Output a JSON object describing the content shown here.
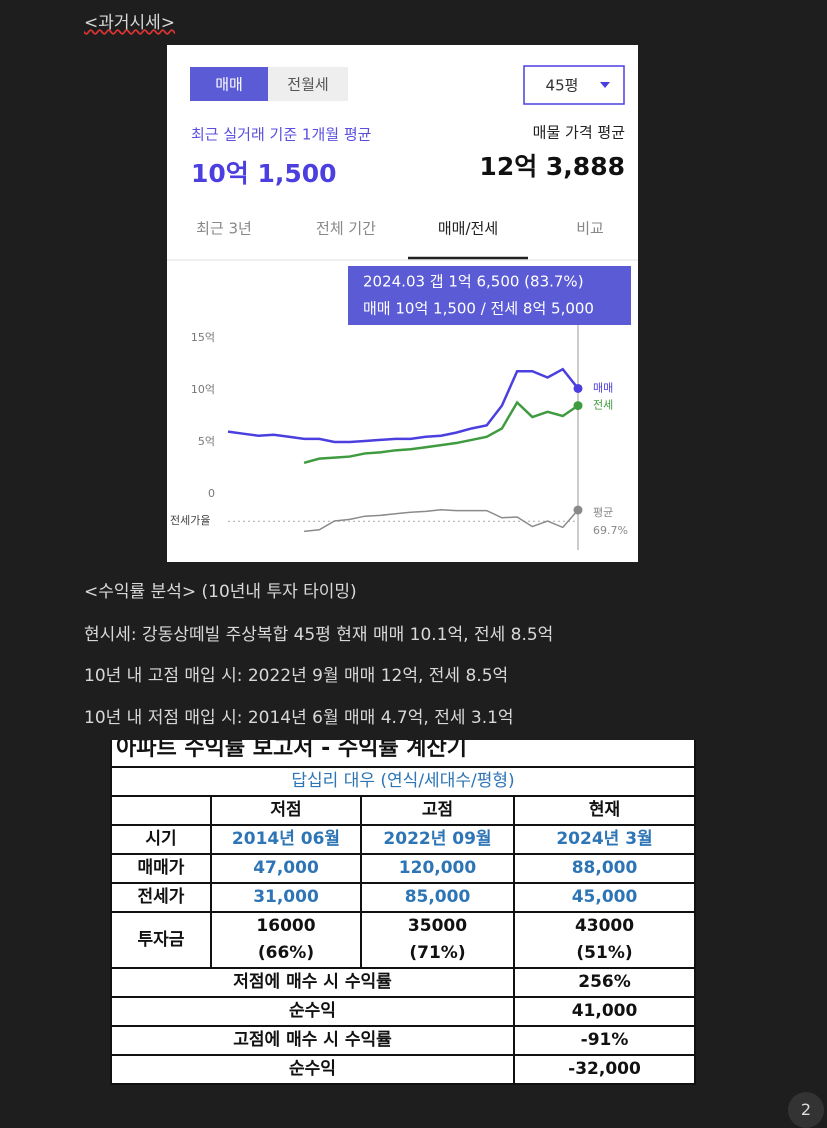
{
  "heading": "<과거시세>",
  "widget": {
    "tabs": [
      "매매",
      "전월세"
    ],
    "size_select": "45평",
    "recent_label": "최근 실거래 기준 1개월 평균",
    "recent_value": "10억 1,500",
    "listing_label": "매물 가격 평균",
    "listing_value": "12억 3,888",
    "periods": [
      "최근 3년",
      "전체 기간",
      "매매/전세",
      "비교"
    ]
  },
  "chart_data": {
    "type": "line",
    "tooltip": [
      "2024.03  갭 1억 6,500 (83.7%)",
      "매매 10억 1,500 / 전세 8억 5,000"
    ],
    "categories": [
      null,
      null,
      null,
      null,
      null,
      null,
      null,
      null,
      null,
      null,
      null,
      null,
      null,
      null,
      null,
      null,
      null,
      null,
      null,
      null,
      null,
      null,
      null,
      null
    ],
    "ylim": [
      0,
      15
    ],
    "yticks": [
      0,
      {
        "value": 5,
        "label": "5억"
      },
      {
        "value": 10,
        "label": "10억"
      },
      {
        "value": 15,
        "label": "15억"
      }
    ],
    "y2lim": [
      40,
      100
    ],
    "series": [
      {
        "name": "매매",
        "color": "#4b3fe0",
        "values": [
          6,
          5.8,
          5.6,
          5.7,
          5.5,
          5.3,
          5.3,
          5,
          5,
          5.1,
          5.2,
          5.3,
          5.3,
          5.5,
          5.6,
          5.9,
          6.3,
          6.6,
          8.5,
          11.8,
          11.8,
          11.2,
          12,
          10.15
        ]
      },
      {
        "name": "전세",
        "color": "#3f9b3f",
        "values": [
          null,
          null,
          null,
          null,
          null,
          3,
          3.4,
          3.5,
          3.6,
          3.9,
          4,
          4.2,
          4.3,
          4.5,
          4.7,
          4.9,
          5.2,
          5.5,
          6.3,
          8.8,
          7.4,
          7.9,
          7.5,
          8.5
        ]
      },
      {
        "name": "전세가율",
        "color": "#8a8a8a",
        "axis": "y2",
        "values": [
          null,
          null,
          null,
          null,
          null,
          57,
          59,
          70,
          72,
          76,
          77,
          79,
          81,
          82,
          84,
          83,
          83,
          83,
          74,
          75,
          63,
          70,
          62,
          83.7
        ]
      }
    ],
    "average": {
      "name": "평균",
      "value": 69.7,
      "label": "69.7%"
    }
  },
  "analysis": {
    "title": "<수익률 분석> (10년내 투자 타이밍)",
    "lines": [
      "현시세: 강동상떼빌 주상복합 45평 현재 매매 10.1억, 전세 8.5억",
      "10년 내 고점 매입 시: 2022년 9월 매매 12억, 전세 8.5억",
      "10년 내 저점 매입 시: 2014년 6월 매매 4.7억, 전세 3.1억"
    ]
  },
  "table": {
    "title": "아파트 수익률 보고서 - 수익률 계산기",
    "subtitle": "답십리 대우 (연식/세대수/평형)",
    "columns": [
      "저점",
      "고점",
      "현재"
    ],
    "rows": [
      [
        "시기",
        "2014년 06월",
        "2022년 09월",
        "2024년 3월"
      ],
      [
        "매매가",
        "47,000",
        "120,000",
        "88,000"
      ],
      [
        "전세가",
        "31,000",
        "85,000",
        "45,000"
      ]
    ],
    "investment": {
      "label": "투자금",
      "amounts": [
        "16000",
        "35000",
        "43000"
      ],
      "ratios": [
        "(66%)",
        "(71%)",
        "(51%)"
      ]
    },
    "summary": [
      [
        "저점에 매수 시 수익률",
        "256%"
      ],
      [
        "순수익",
        "41,000"
      ],
      [
        "고점에 매수 시 수익률",
        "-91%"
      ],
      [
        "순수익",
        "-32,000"
      ]
    ]
  },
  "page_number": "2"
}
